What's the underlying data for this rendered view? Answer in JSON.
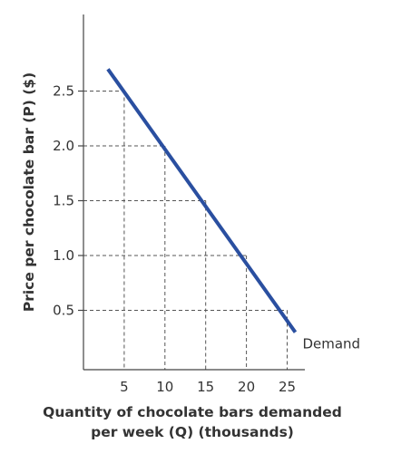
{
  "chart_data": {
    "type": "line",
    "title": "",
    "xlabel_lines": [
      "Quantity of chocolate bars demanded",
      "per week (Q) (thousands)"
    ],
    "ylabel": "Price per chocolate bar (P) ($)",
    "x_ticks": [
      "5",
      "10",
      "15",
      "20",
      "25"
    ],
    "y_ticks": [
      "0.5",
      "1.0",
      "1.5",
      "2.0",
      "2.5"
    ],
    "xlim": [
      0,
      30
    ],
    "ylim": [
      0,
      3.2
    ],
    "grid": false,
    "series": [
      {
        "name": "Demand",
        "color": "#2a4fa0",
        "x": [
          3,
          26
        ],
        "y": [
          2.7,
          0.3
        ]
      }
    ],
    "reference_points": [
      {
        "x": 5,
        "y": 2.5
      },
      {
        "x": 10,
        "y": 2.0
      },
      {
        "x": 15,
        "y": 1.5
      },
      {
        "x": 20,
        "y": 1.0
      },
      {
        "x": 25,
        "y": 0.5
      }
    ]
  }
}
